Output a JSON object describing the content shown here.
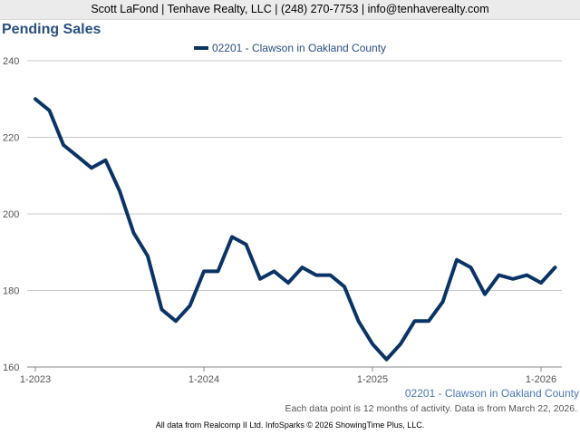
{
  "header": {
    "contact": "Scott LaFond | Tenhave Realty, LLC | (248) 270-7753 | info@tenhaverealty.com"
  },
  "chart_data": {
    "type": "line",
    "title": "Pending Sales",
    "xlabel": "",
    "ylabel": "",
    "ylim": [
      160,
      240
    ],
    "y_ticks": [
      160,
      180,
      200,
      220,
      240
    ],
    "x_tick_labels": [
      "1-2023",
      "1-2024",
      "1-2025",
      "1-2026"
    ],
    "grid": true,
    "legend": "top-center",
    "color": "#0b3466",
    "x": [
      "1-2023",
      "2-2023",
      "3-2023",
      "4-2023",
      "5-2023",
      "6-2023",
      "7-2023",
      "8-2023",
      "9-2023",
      "10-2023",
      "11-2023",
      "12-2023",
      "1-2024",
      "2-2024",
      "3-2024",
      "4-2024",
      "5-2024",
      "6-2024",
      "7-2024",
      "8-2024",
      "9-2024",
      "10-2024",
      "11-2024",
      "12-2024",
      "1-2025",
      "2-2025",
      "3-2025",
      "4-2025",
      "5-2025",
      "6-2025",
      "7-2025",
      "8-2025",
      "9-2025",
      "10-2025",
      "11-2025",
      "12-2025",
      "1-2026",
      "2-2026"
    ],
    "series": [
      {
        "name": "02201 - Clawson in Oakland County",
        "values": [
          230,
          227,
          218,
          215,
          212,
          214,
          206,
          195,
          189,
          175,
          172,
          176,
          185,
          185,
          194,
          192,
          183,
          185,
          182,
          186,
          184,
          184,
          181,
          172,
          166,
          162,
          166,
          172,
          172,
          177,
          188,
          186,
          179,
          184,
          183,
          184,
          182,
          186
        ]
      }
    ]
  },
  "series_label": "02201 - Clawson in Oakland County",
  "note": "Each data point is 12 months of activity. Data is from March 22, 2026.",
  "footer": "All data from Realcomp II Ltd. InfoSparks © 2026 ShowingTime Plus, LLC."
}
